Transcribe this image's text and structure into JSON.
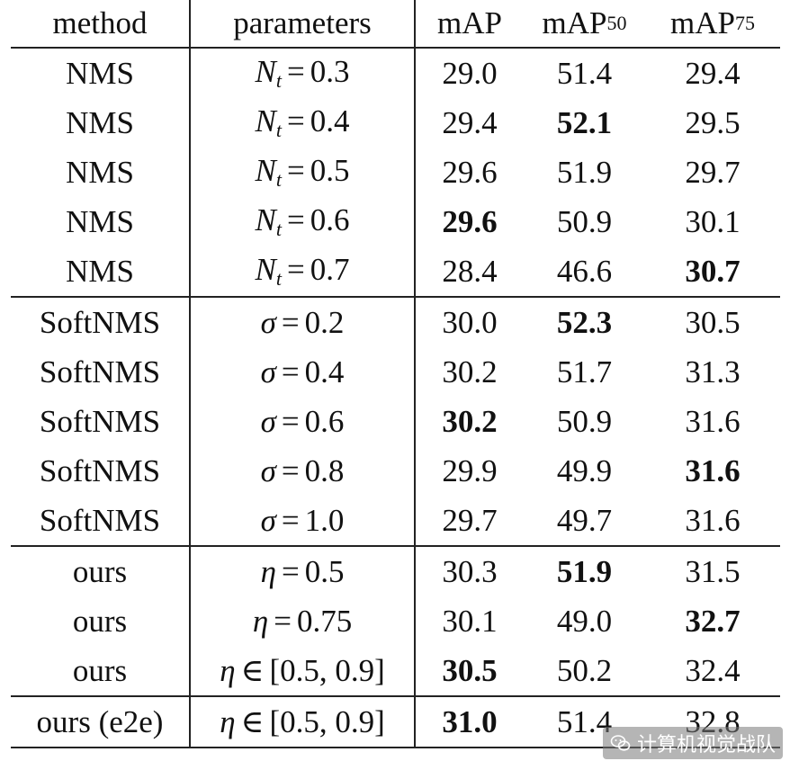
{
  "table": {
    "headers": {
      "method": "method",
      "parameters": "parameters",
      "map": "mAP",
      "map50_base": "mAP",
      "map50_sub": "50",
      "map75_base": "mAP",
      "map75_sub": "75"
    },
    "rows": [
      {
        "method": "NMS",
        "param_sym": "N",
        "param_sub": "t",
        "param_op": "=",
        "param_val": "0.3",
        "map": "29.0",
        "map50": "51.4",
        "map75": "29.4",
        "bold": []
      },
      {
        "method": "NMS",
        "param_sym": "N",
        "param_sub": "t",
        "param_op": "=",
        "param_val": "0.4",
        "map": "29.4",
        "map50": "52.1",
        "map75": "29.5",
        "bold": [
          "map50"
        ]
      },
      {
        "method": "NMS",
        "param_sym": "N",
        "param_sub": "t",
        "param_op": "=",
        "param_val": "0.5",
        "map": "29.6",
        "map50": "51.9",
        "map75": "29.7",
        "bold": []
      },
      {
        "method": "NMS",
        "param_sym": "N",
        "param_sub": "t",
        "param_op": "=",
        "param_val": "0.6",
        "map": "29.6",
        "map50": "50.9",
        "map75": "30.1",
        "bold": [
          "map"
        ]
      },
      {
        "method": "NMS",
        "param_sym": "N",
        "param_sub": "t",
        "param_op": "=",
        "param_val": "0.7",
        "map": "28.4",
        "map50": "46.6",
        "map75": "30.7",
        "bold": [
          "map75"
        ]
      },
      {
        "method": "SoftNMS",
        "param_sym": "σ",
        "param_sub": "",
        "param_op": "=",
        "param_val": "0.2",
        "map": "30.0",
        "map50": "52.3",
        "map75": "30.5",
        "bold": [
          "map50"
        ]
      },
      {
        "method": "SoftNMS",
        "param_sym": "σ",
        "param_sub": "",
        "param_op": "=",
        "param_val": "0.4",
        "map": "30.2",
        "map50": "51.7",
        "map75": "31.3",
        "bold": []
      },
      {
        "method": "SoftNMS",
        "param_sym": "σ",
        "param_sub": "",
        "param_op": "=",
        "param_val": "0.6",
        "map": "30.2",
        "map50": "50.9",
        "map75": "31.6",
        "bold": [
          "map"
        ]
      },
      {
        "method": "SoftNMS",
        "param_sym": "σ",
        "param_sub": "",
        "param_op": "=",
        "param_val": "0.8",
        "map": "29.9",
        "map50": "49.9",
        "map75": "31.6",
        "bold": [
          "map75"
        ]
      },
      {
        "method": "SoftNMS",
        "param_sym": "σ",
        "param_sub": "",
        "param_op": "=",
        "param_val": "1.0",
        "map": "29.7",
        "map50": "49.7",
        "map75": "31.6",
        "bold": []
      },
      {
        "method": "ours",
        "param_sym": "η",
        "param_sub": "",
        "param_op": "=",
        "param_val": "0.5",
        "map": "30.3",
        "map50": "51.9",
        "map75": "31.5",
        "bold": [
          "map50"
        ]
      },
      {
        "method": "ours",
        "param_sym": "η",
        "param_sub": "",
        "param_op": "=",
        "param_val": "0.75",
        "map": "30.1",
        "map50": "49.0",
        "map75": "32.7",
        "bold": [
          "map75"
        ]
      },
      {
        "method": "ours",
        "param_sym": "η",
        "param_sub": "",
        "param_op": "∈",
        "param_val": "[0.5, 0.9]",
        "map": "30.5",
        "map50": "50.2",
        "map75": "32.4",
        "bold": [
          "map"
        ]
      },
      {
        "method": "ours (e2e)",
        "param_sym": "η",
        "param_sub": "",
        "param_op": "∈",
        "param_val": "[0.5, 0.9]",
        "map": "31.0",
        "map50": "51.4",
        "map75": "32.8",
        "bold": [
          "map"
        ]
      }
    ],
    "group_end_rows": [
      4,
      9,
      12
    ]
  },
  "watermark": {
    "text": "计算机视觉战队",
    "icon": "wechat-icon"
  }
}
